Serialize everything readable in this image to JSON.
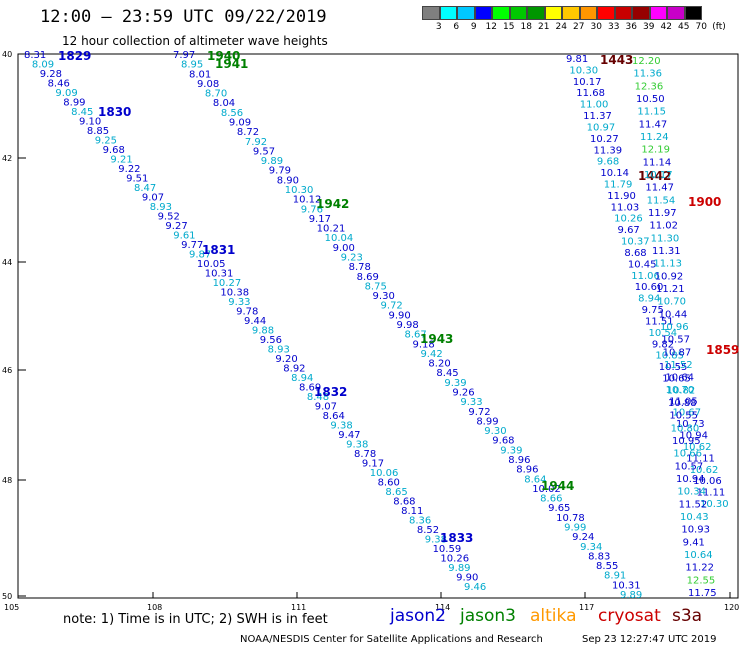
{
  "header": {
    "title": "12:00 – 23:59 UTC 09/22/2019",
    "subtitle": "12 hour collection of altimeter wave heights"
  },
  "colorbar": {
    "unit": "(ft)",
    "labels": [
      "3",
      "6",
      "9",
      "12",
      "15",
      "18",
      "21",
      "24",
      "27",
      "30",
      "33",
      "36",
      "39",
      "42",
      "45",
      "70"
    ],
    "colors": [
      "#7f7f7f",
      "#00ffff",
      "#00c8ff",
      "#0000ff",
      "#00ff00",
      "#00c800",
      "#009600",
      "#ffff00",
      "#ffc800",
      "#ff9600",
      "#ff0000",
      "#c80000",
      "#960000",
      "#ff00ff",
      "#c800c8",
      "#000000"
    ]
  },
  "map": {
    "lat_labels": [
      "40",
      "42",
      "44",
      "46",
      "48",
      "50"
    ],
    "lon_labels": [
      "105",
      "108",
      "111",
      "114",
      "117",
      "120"
    ]
  },
  "colors": {
    "jason2": "#0000cc",
    "jason3": "#008000",
    "altika": "#ff9900",
    "cryosat": "#cc0000",
    "s3a": "#660000",
    "tick_cyan": "#00aacc",
    "tick_green": "#33cc33"
  },
  "tracks": [
    {
      "id": "t1829",
      "time_labels": [
        {
          "t": "1829",
          "c": "jason2"
        },
        {
          "t": "1830",
          "c": "jason2"
        },
        {
          "t": "1831",
          "c": "jason2"
        },
        {
          "t": "1832",
          "c": "jason2"
        },
        {
          "t": "1833",
          "c": "jason2"
        }
      ],
      "values": [
        "8.31",
        "8.09",
        "9.28",
        "8.46",
        "9.09",
        "8.99",
        "8.45",
        "9.10",
        "8.85",
        "9.25",
        "9.68",
        "9.21",
        "9.22",
        "9.51",
        "8.47",
        "9.07",
        "8.93",
        "9.52",
        "9.27",
        "9.61",
        "9.77",
        "9.87",
        "10.05",
        "10.31",
        "10.27",
        "10.38",
        "9.33",
        "9.78",
        "9.44",
        "9.88",
        "9.56",
        "8.93",
        "9.20",
        "8.92",
        "8.94",
        "8.69",
        "8.48",
        "9.07",
        "8.64",
        "9.38",
        "9.47",
        "9.38",
        "8.78",
        "9.17",
        "10.06",
        "8.60",
        "8.65",
        "8.68",
        "8.11",
        "8.36",
        "8.52",
        "9.38",
        "10.59",
        "10.26",
        "9.89",
        "9.90",
        "9.46"
      ]
    },
    {
      "id": "t1940",
      "time_labels": [
        {
          "t": "1940",
          "c": "jason3"
        },
        {
          "t": "1941",
          "c": "jason3"
        },
        {
          "t": "1942",
          "c": "jason3"
        },
        {
          "t": "1943",
          "c": "jason3"
        },
        {
          "t": "1944",
          "c": "jason3"
        }
      ],
      "values": [
        "7.97",
        "8.95",
        "8.01",
        "9.08",
        "8.70",
        "8.04",
        "8.56",
        "9.09",
        "8.72",
        "7.92",
        "9.57",
        "9.89",
        "9.79",
        "8.90",
        "10.30",
        "10.12",
        "9.76",
        "9.17",
        "10.21",
        "10.04",
        "9.00",
        "9.23",
        "8.78",
        "8.69",
        "8.75",
        "9.30",
        "9.72",
        "9.90",
        "9.98",
        "8.67",
        "9.18",
        "9.42",
        "8.20",
        "8.45",
        "9.39",
        "9.26",
        "9.33",
        "9.72",
        "8.99",
        "9.30",
        "9.68",
        "9.39",
        "8.96",
        "8.96",
        "8.64",
        "10.02",
        "8.66",
        "9.65",
        "10.78",
        "9.99",
        "9.24",
        "9.34",
        "8.83",
        "8.55",
        "8.91",
        "10.31",
        "9.89"
      ]
    },
    {
      "id": "t1443",
      "time_labels": [
        {
          "t": "1443",
          "c": "s3a"
        },
        {
          "t": "1442",
          "c": "s3a"
        }
      ],
      "values": [
        "9.81",
        "10.30",
        "10.17",
        "11.68",
        "11.00",
        "11.37",
        "10.97",
        "10.27",
        "11.39",
        "9.68",
        "10.14",
        "11.79",
        "11.90",
        "11.03",
        "10.26",
        "9.67",
        "10.37",
        "8.68",
        "10.45",
        "11.06",
        "10.60",
        "8.94",
        "9.75",
        "11.51",
        "10.54",
        "9.82",
        "10.85",
        "10.55",
        "10.65",
        "10.70",
        "11.05",
        "10.67",
        "10.73",
        "10.94",
        "10.62",
        "11.11",
        "10.62",
        "10.06",
        "11.11",
        "10.30"
      ]
    },
    {
      "id": "t1900",
      "time_labels": [
        {
          "t": "1900",
          "c": "cryosat"
        },
        {
          "t": "1859",
          "c": "cryosat"
        }
      ],
      "values": [
        "12.20",
        "11.36",
        "12.36",
        "10.50",
        "11.15",
        "11.47",
        "11.24",
        "12.19",
        "11.14",
        "10.17",
        "11.47",
        "11.54",
        "11.97",
        "11.02",
        "11.30",
        "11.31",
        "11.13",
        "10.92",
        "11.21",
        "10.70",
        "10.44",
        "10.96",
        "10.57",
        "10.87",
        "11.52",
        "10.64",
        "10.82",
        "10.88",
        "10.55",
        "10.80",
        "10.95",
        "10.66",
        "10.57",
        "10.94",
        "10.34",
        "11.52",
        "10.43",
        "10.93",
        "9.41",
        "10.64",
        "11.22",
        "12.55",
        "11.75"
      ]
    }
  ],
  "footer": {
    "note": "note:  1) Time is in UTC;  2) SWH is in feet",
    "legend": [
      {
        "label": "jason2",
        "c": "jason2"
      },
      {
        "label": "jason3",
        "c": "jason3"
      },
      {
        "label": "altika",
        "c": "altika"
      },
      {
        "label": "cryosat",
        "c": "cryosat"
      },
      {
        "label": "s3a",
        "c": "s3a"
      }
    ],
    "credit_left": "NOAA/NESDIS Center for Satellite Applications and Research",
    "credit_right": "Sep 23 12:27:47 UTC 2019"
  }
}
